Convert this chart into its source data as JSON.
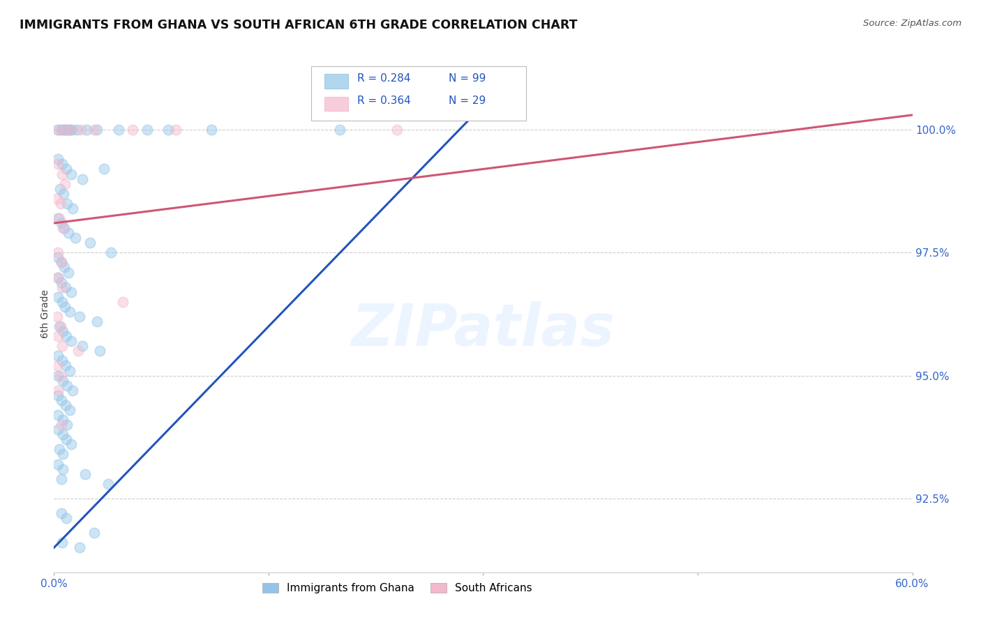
{
  "title": "IMMIGRANTS FROM GHANA VS SOUTH AFRICAN 6TH GRADE CORRELATION CHART",
  "source": "Source: ZipAtlas.com",
  "ylabel": "6th Grade",
  "yticks": [
    92.5,
    95.0,
    97.5,
    100.0
  ],
  "ytick_labels": [
    "92.5%",
    "95.0%",
    "97.5%",
    "100.0%"
  ],
  "xlim": [
    0.0,
    60.0
  ],
  "ylim": [
    91.0,
    101.5
  ],
  "blue_color": "#92c5e8",
  "pink_color": "#f4b8cc",
  "trendline_blue": "#2255bb",
  "trendline_pink": "#d05575",
  "watermark_text": "ZIPatlas",
  "blue_scatter": [
    [
      0.3,
      100.0
    ],
    [
      0.5,
      100.0
    ],
    [
      0.65,
      100.0
    ],
    [
      0.8,
      100.0
    ],
    [
      0.95,
      100.0
    ],
    [
      1.1,
      100.0
    ],
    [
      1.25,
      100.0
    ],
    [
      1.6,
      100.0
    ],
    [
      2.3,
      100.0
    ],
    [
      3.0,
      100.0
    ],
    [
      4.5,
      100.0
    ],
    [
      6.5,
      100.0
    ],
    [
      8.0,
      100.0
    ],
    [
      11.0,
      100.0
    ],
    [
      20.0,
      100.0
    ],
    [
      0.3,
      99.4
    ],
    [
      0.55,
      99.3
    ],
    [
      0.85,
      99.2
    ],
    [
      1.2,
      99.1
    ],
    [
      2.0,
      99.0
    ],
    [
      3.5,
      99.2
    ],
    [
      0.4,
      98.8
    ],
    [
      0.65,
      98.7
    ],
    [
      0.9,
      98.5
    ],
    [
      1.3,
      98.4
    ],
    [
      0.3,
      98.2
    ],
    [
      0.5,
      98.1
    ],
    [
      0.7,
      98.0
    ],
    [
      1.0,
      97.9
    ],
    [
      1.5,
      97.8
    ],
    [
      2.5,
      97.7
    ],
    [
      4.0,
      97.5
    ],
    [
      0.3,
      97.4
    ],
    [
      0.5,
      97.3
    ],
    [
      0.7,
      97.2
    ],
    [
      1.0,
      97.1
    ],
    [
      0.3,
      97.0
    ],
    [
      0.5,
      96.9
    ],
    [
      0.8,
      96.8
    ],
    [
      1.2,
      96.7
    ],
    [
      0.3,
      96.6
    ],
    [
      0.55,
      96.5
    ],
    [
      0.75,
      96.4
    ],
    [
      1.1,
      96.3
    ],
    [
      1.8,
      96.2
    ],
    [
      3.0,
      96.1
    ],
    [
      0.35,
      96.0
    ],
    [
      0.6,
      95.9
    ],
    [
      0.85,
      95.8
    ],
    [
      1.2,
      95.7
    ],
    [
      2.0,
      95.6
    ],
    [
      3.2,
      95.5
    ],
    [
      0.3,
      95.4
    ],
    [
      0.55,
      95.3
    ],
    [
      0.8,
      95.2
    ],
    [
      1.1,
      95.1
    ],
    [
      0.3,
      95.0
    ],
    [
      0.6,
      94.9
    ],
    [
      0.9,
      94.8
    ],
    [
      1.3,
      94.7
    ],
    [
      0.3,
      94.6
    ],
    [
      0.5,
      94.5
    ],
    [
      0.8,
      94.4
    ],
    [
      1.1,
      94.3
    ],
    [
      0.3,
      94.2
    ],
    [
      0.6,
      94.1
    ],
    [
      0.9,
      94.0
    ],
    [
      0.3,
      93.9
    ],
    [
      0.6,
      93.8
    ],
    [
      0.85,
      93.7
    ],
    [
      1.2,
      93.6
    ],
    [
      0.35,
      93.5
    ],
    [
      0.6,
      93.4
    ],
    [
      0.3,
      93.2
    ],
    [
      0.6,
      93.1
    ],
    [
      2.2,
      93.0
    ],
    [
      0.5,
      92.9
    ],
    [
      3.8,
      92.8
    ],
    [
      0.5,
      92.2
    ],
    [
      0.85,
      92.1
    ],
    [
      2.8,
      91.8
    ],
    [
      0.55,
      91.6
    ],
    [
      1.8,
      91.5
    ]
  ],
  "pink_scatter": [
    [
      0.3,
      100.0
    ],
    [
      0.75,
      100.0
    ],
    [
      1.1,
      100.0
    ],
    [
      1.9,
      100.0
    ],
    [
      2.8,
      100.0
    ],
    [
      5.5,
      100.0
    ],
    [
      8.5,
      100.0
    ],
    [
      24.0,
      100.0
    ],
    [
      0.3,
      99.3
    ],
    [
      0.55,
      99.1
    ],
    [
      0.75,
      98.9
    ],
    [
      0.25,
      98.6
    ],
    [
      0.45,
      98.5
    ],
    [
      0.35,
      98.2
    ],
    [
      0.6,
      98.0
    ],
    [
      0.3,
      97.5
    ],
    [
      0.5,
      97.3
    ],
    [
      0.3,
      97.0
    ],
    [
      0.55,
      96.8
    ],
    [
      4.8,
      96.5
    ],
    [
      0.25,
      96.2
    ],
    [
      0.45,
      96.0
    ],
    [
      0.3,
      95.8
    ],
    [
      0.55,
      95.6
    ],
    [
      1.7,
      95.5
    ],
    [
      0.25,
      95.2
    ],
    [
      0.45,
      95.0
    ],
    [
      0.3,
      94.7
    ],
    [
      0.5,
      94.0
    ]
  ],
  "blue_trend_x": [
    0.0,
    30.0
  ],
  "blue_trend_y": [
    91.5,
    100.5
  ],
  "pink_trend_x": [
    0.0,
    60.0
  ],
  "pink_trend_y": [
    98.1,
    100.3
  ]
}
